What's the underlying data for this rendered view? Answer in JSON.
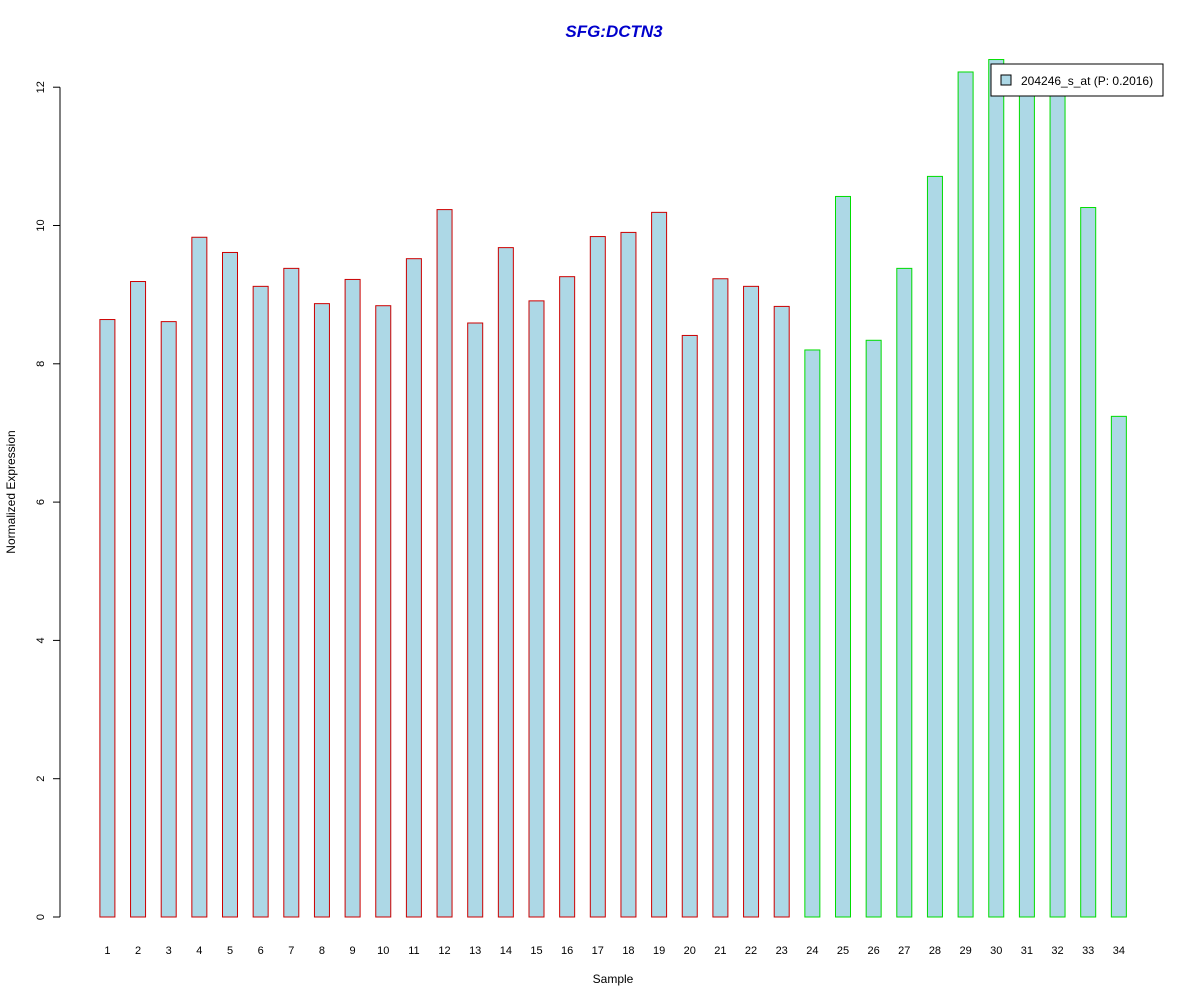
{
  "chart_data": {
    "type": "bar",
    "title": "SFG:DCTN3",
    "title_color": "#0000CC",
    "xlabel": "Sample",
    "ylabel": "Normalized Expression",
    "ylim": [
      0,
      12
    ],
    "yticks": [
      0,
      2,
      4,
      6,
      8,
      10,
      12
    ],
    "categories": [
      "1",
      "2",
      "3",
      "4",
      "5",
      "6",
      "7",
      "8",
      "9",
      "10",
      "11",
      "12",
      "13",
      "14",
      "15",
      "16",
      "17",
      "18",
      "19",
      "20",
      "21",
      "22",
      "23",
      "24",
      "25",
      "26",
      "27",
      "28",
      "29",
      "30",
      "31",
      "32",
      "33",
      "34"
    ],
    "series": [
      {
        "name": "204246_s_at (P: 0.2016)",
        "fill": "#ADD8E6",
        "values": [
          8.64,
          9.19,
          8.61,
          9.83,
          9.61,
          9.12,
          9.38,
          8.87,
          9.22,
          8.84,
          9.52,
          10.23,
          8.59,
          9.68,
          8.91,
          9.26,
          9.84,
          9.9,
          10.19,
          8.41,
          9.23,
          9.12,
          8.83,
          8.2,
          10.42,
          8.34,
          9.38,
          10.71,
          12.22,
          12.4,
          11.97,
          12.02,
          10.26,
          7.24
        ]
      }
    ],
    "group_border_colors": {
      "group1": "#CC0000",
      "group2": "#00DD00"
    },
    "group_assignment": [
      "group1",
      "group1",
      "group1",
      "group1",
      "group1",
      "group1",
      "group1",
      "group1",
      "group1",
      "group1",
      "group1",
      "group1",
      "group1",
      "group1",
      "group1",
      "group1",
      "group1",
      "group1",
      "group1",
      "group1",
      "group1",
      "group1",
      "group1",
      "group2",
      "group2",
      "group2",
      "group2",
      "group2",
      "group2",
      "group2",
      "group2",
      "group2",
      "group2",
      "group2"
    ],
    "legend": {
      "position": "top-right",
      "label": "204246_s_at (P: 0.2016)"
    },
    "grid": false
  }
}
